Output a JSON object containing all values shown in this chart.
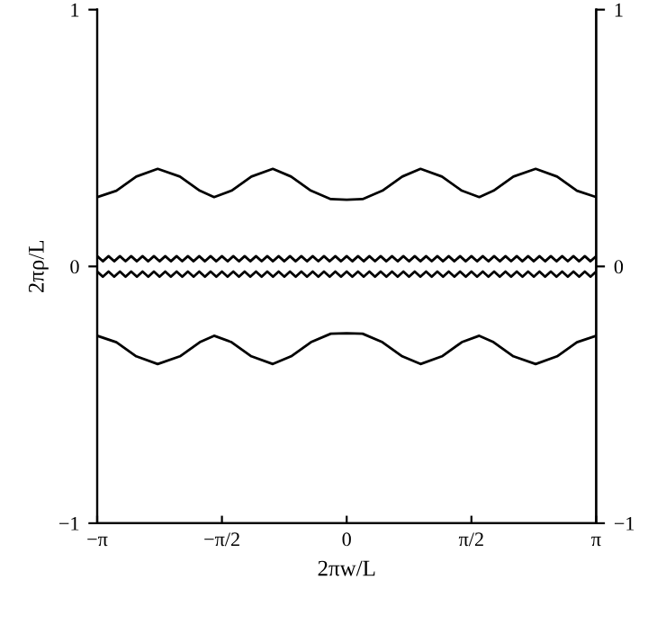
{
  "chart_data": {
    "type": "line",
    "xlabel": "2πw/L",
    "ylabel": "2πρ/L",
    "xlim": [
      -3.142,
      3.142
    ],
    "xticks": [
      {
        "value": -3.142,
        "label": "−π"
      },
      {
        "value": -1.571,
        "label": "−π/2"
      },
      0,
      {
        "value": 1.571,
        "label": "π/2"
      },
      {
        "value": 3.142,
        "label": "π"
      }
    ],
    "ylim": [
      -1,
      1
    ],
    "yticks": [
      -1,
      0,
      1
    ],
    "y2lim": [
      -1,
      1
    ],
    "y2ticks": [
      -1,
      0,
      1
    ],
    "grid": false,
    "legend": false,
    "marker": "none",
    "line_style": "solid",
    "series": [
      {
        "color": "#000000",
        "x": [
          -3.142,
          -2.9,
          -2.65,
          -2.38,
          -2.1,
          -1.85,
          -1.67,
          -1.45,
          -1.2,
          -0.93,
          -0.7,
          -0.45,
          -0.2,
          0,
          0.2,
          0.45,
          0.7,
          0.93,
          1.2,
          1.45,
          1.67,
          1.85,
          2.1,
          2.38,
          2.65,
          2.9,
          3.142
        ],
        "values": [
          0.27,
          0.295,
          0.35,
          0.38,
          0.35,
          0.295,
          0.27,
          0.295,
          0.35,
          0.38,
          0.35,
          0.295,
          0.262,
          0.26,
          0.262,
          0.295,
          0.35,
          0.38,
          0.35,
          0.295,
          0.27,
          0.295,
          0.35,
          0.38,
          0.35,
          0.295,
          0.27
        ]
      },
      {
        "color": "#000000",
        "x": [
          -3.142,
          -2.9,
          -2.65,
          -2.38,
          -2.1,
          -1.85,
          -1.67,
          -1.45,
          -1.2,
          -0.93,
          -0.7,
          -0.45,
          -0.2,
          0,
          0.2,
          0.45,
          0.7,
          0.93,
          1.2,
          1.45,
          1.67,
          1.85,
          2.1,
          2.38,
          2.65,
          2.9,
          3.142
        ],
        "values": [
          -0.27,
          -0.295,
          -0.35,
          -0.38,
          -0.35,
          -0.295,
          -0.27,
          -0.295,
          -0.35,
          -0.38,
          -0.35,
          -0.295,
          -0.262,
          -0.26,
          -0.262,
          -0.295,
          -0.35,
          -0.38,
          -0.35,
          -0.295,
          -0.27,
          -0.295,
          -0.35,
          -0.38,
          -0.35,
          -0.295,
          -0.27
        ]
      },
      {
        "color": "#000000",
        "x": [
          -3.142,
          -3.071,
          -2.999,
          -2.928,
          -2.856,
          -2.785,
          -2.714,
          -2.642,
          -2.571,
          -2.499,
          -2.428,
          -2.357,
          -2.285,
          -2.214,
          -2.142,
          -2.071,
          -2.0,
          -1.928,
          -1.857,
          -1.785,
          -1.714,
          -1.642,
          -1.571,
          -1.5,
          -1.428,
          -1.357,
          -1.285,
          -1.214,
          -1.142,
          -1.071,
          -1.0,
          -0.928,
          -0.857,
          -0.785,
          -0.714,
          -0.642,
          -0.571,
          -0.5,
          -0.428,
          -0.357,
          -0.286,
          -0.214,
          -0.143,
          -0.071,
          0,
          0.071,
          0.143,
          0.214,
          0.286,
          0.357,
          0.428,
          0.5,
          0.571,
          0.642,
          0.714,
          0.785,
          0.857,
          0.928,
          1.0,
          1.071,
          1.142,
          1.214,
          1.285,
          1.357,
          1.428,
          1.5,
          1.571,
          1.642,
          1.714,
          1.785,
          1.857,
          1.928,
          2.0,
          2.071,
          2.142,
          2.214,
          2.285,
          2.357,
          2.428,
          2.499,
          2.571,
          2.642,
          2.714,
          2.785,
          2.856,
          2.928,
          2.999,
          3.071,
          3.142
        ],
        "values": [
          0.04,
          0.02,
          0.04,
          0.02,
          0.04,
          0.02,
          0.04,
          0.02,
          0.04,
          0.02,
          0.04,
          0.02,
          0.04,
          0.02,
          0.04,
          0.02,
          0.04,
          0.02,
          0.04,
          0.02,
          0.04,
          0.02,
          0.04,
          0.02,
          0.04,
          0.02,
          0.04,
          0.02,
          0.04,
          0.02,
          0.04,
          0.02,
          0.04,
          0.02,
          0.04,
          0.02,
          0.04,
          0.02,
          0.04,
          0.02,
          0.04,
          0.02,
          0.04,
          0.02,
          0.04,
          0.02,
          0.04,
          0.02,
          0.04,
          0.02,
          0.04,
          0.02,
          0.04,
          0.02,
          0.04,
          0.02,
          0.04,
          0.02,
          0.04,
          0.02,
          0.04,
          0.02,
          0.04,
          0.02,
          0.04,
          0.02,
          0.04,
          0.02,
          0.04,
          0.02,
          0.04,
          0.02,
          0.04,
          0.02,
          0.04,
          0.02,
          0.04,
          0.02,
          0.04,
          0.02,
          0.04,
          0.02,
          0.04,
          0.02,
          0.04,
          0.02,
          0.04,
          0.02,
          0.04
        ]
      },
      {
        "color": "#000000",
        "x": [
          -3.142,
          -3.071,
          -2.999,
          -2.928,
          -2.856,
          -2.785,
          -2.714,
          -2.642,
          -2.571,
          -2.499,
          -2.428,
          -2.357,
          -2.285,
          -2.214,
          -2.142,
          -2.071,
          -2.0,
          -1.928,
          -1.857,
          -1.785,
          -1.714,
          -1.642,
          -1.571,
          -1.5,
          -1.428,
          -1.357,
          -1.285,
          -1.214,
          -1.142,
          -1.071,
          -1.0,
          -0.928,
          -0.857,
          -0.785,
          -0.714,
          -0.642,
          -0.571,
          -0.5,
          -0.428,
          -0.357,
          -0.286,
          -0.214,
          -0.143,
          -0.071,
          0,
          0.071,
          0.143,
          0.214,
          0.286,
          0.357,
          0.428,
          0.5,
          0.571,
          0.642,
          0.714,
          0.785,
          0.857,
          0.928,
          1.0,
          1.071,
          1.142,
          1.214,
          1.285,
          1.357,
          1.428,
          1.5,
          1.571,
          1.642,
          1.714,
          1.785,
          1.857,
          1.928,
          2.0,
          2.071,
          2.142,
          2.214,
          2.285,
          2.357,
          2.428,
          2.499,
          2.571,
          2.642,
          2.714,
          2.785,
          2.856,
          2.928,
          2.999,
          3.071,
          3.142
        ],
        "values": [
          -0.02,
          -0.04,
          -0.02,
          -0.04,
          -0.02,
          -0.04,
          -0.02,
          -0.04,
          -0.02,
          -0.04,
          -0.02,
          -0.04,
          -0.02,
          -0.04,
          -0.02,
          -0.04,
          -0.02,
          -0.04,
          -0.02,
          -0.04,
          -0.02,
          -0.04,
          -0.02,
          -0.04,
          -0.02,
          -0.04,
          -0.02,
          -0.04,
          -0.02,
          -0.04,
          -0.02,
          -0.04,
          -0.02,
          -0.04,
          -0.02,
          -0.04,
          -0.02,
          -0.04,
          -0.02,
          -0.04,
          -0.02,
          -0.04,
          -0.02,
          -0.04,
          -0.02,
          -0.04,
          -0.02,
          -0.04,
          -0.02,
          -0.04,
          -0.02,
          -0.04,
          -0.02,
          -0.04,
          -0.02,
          -0.04,
          -0.02,
          -0.04,
          -0.02,
          -0.04,
          -0.02,
          -0.04,
          -0.02,
          -0.04,
          -0.02,
          -0.04,
          -0.02,
          -0.04,
          -0.02,
          -0.04,
          -0.02,
          -0.04,
          -0.02,
          -0.04,
          -0.02,
          -0.04,
          -0.02,
          -0.04,
          -0.02,
          -0.04,
          -0.02,
          -0.04,
          -0.02,
          -0.04,
          -0.02,
          -0.04,
          -0.02,
          -0.04,
          -0.02
        ]
      }
    ]
  }
}
